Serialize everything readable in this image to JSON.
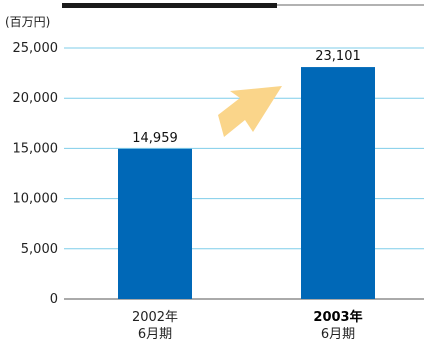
{
  "chart_data": {
    "type": "bar",
    "unit_label": "(百万円)",
    "categories": [
      {
        "year": "2002年",
        "period": "6月期",
        "emphasized": false
      },
      {
        "year": "2003年",
        "period": "6月期",
        "emphasized": true
      }
    ],
    "values": [
      14959,
      23101
    ],
    "value_labels": [
      "14,959",
      "23,101"
    ],
    "y_ticks": [
      0,
      5000,
      10000,
      15000,
      20000,
      25000
    ],
    "y_tick_labels": [
      "0",
      "5,000",
      "10,000",
      "15,000",
      "20,000",
      "25,000"
    ],
    "ylim": [
      0,
      25000
    ],
    "grid": true,
    "colors": {
      "bar": "#0068b7",
      "grid": "#7fcdea",
      "axis": "#555555",
      "arrow": "#fad58a",
      "top_band_dark": "#1a1a1a",
      "top_band_line": "#666666"
    }
  }
}
